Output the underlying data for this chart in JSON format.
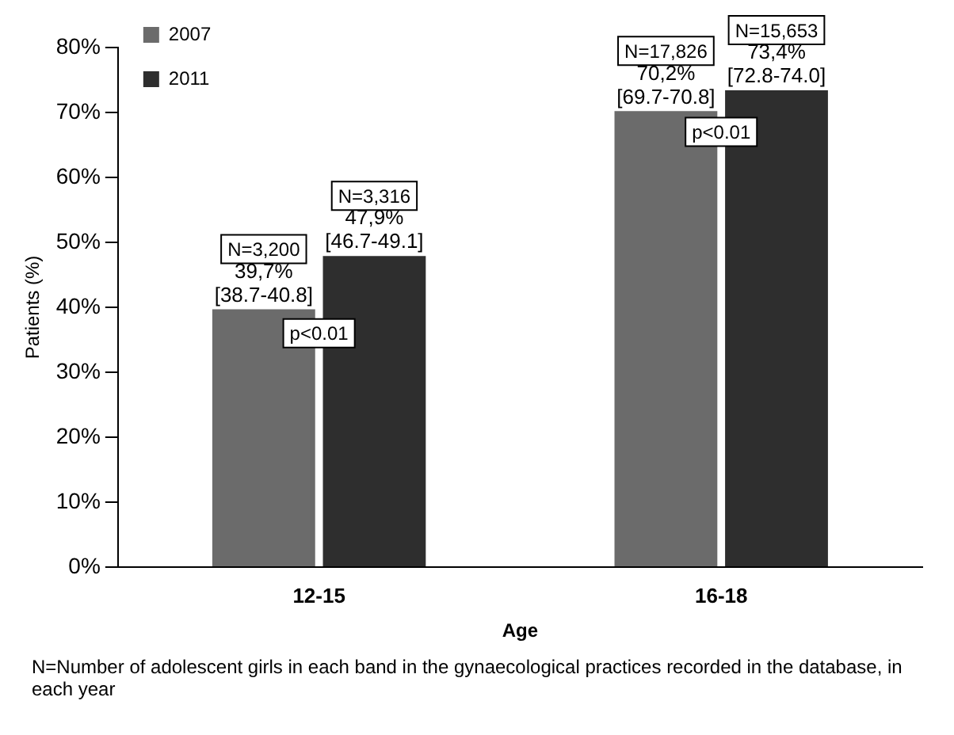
{
  "chart_data": {
    "type": "bar",
    "xlabel": "Age",
    "ylabel": "Patients (%)",
    "categories": [
      "12-15",
      "16-18"
    ],
    "series": [
      {
        "name": "2007",
        "color": "#6b6b6b",
        "values": [
          39.7,
          70.2
        ],
        "value_labels": [
          "39,7%\n[38.7-40.8]",
          "70,2%\n[69.7-70.8]"
        ]
      },
      {
        "name": "2011",
        "color": "#2e2e2e",
        "values": [
          47.9,
          73.4
        ],
        "value_labels": [
          "47,9%\n[46.7-49.1]",
          "73,4%\n[72.8-74.0]"
        ]
      }
    ],
    "ylim": [
      0,
      80
    ],
    "yticks": [
      {
        "value": 0,
        "label": "0%"
      },
      {
        "value": 10,
        "label": "10%"
      },
      {
        "value": 20,
        "label": "20%"
      },
      {
        "value": 30,
        "label": "30%"
      },
      {
        "value": 40,
        "label": "40%"
      },
      {
        "value": 50,
        "label": "50%"
      },
      {
        "value": 60,
        "label": "60%"
      },
      {
        "value": 70,
        "label": "70%"
      },
      {
        "value": 80,
        "label": "80%"
      }
    ],
    "grid": false,
    "legend": "top left",
    "annotations": [
      "N=3,200",
      "N=3,316",
      "N=17,826",
      "N=15,653",
      {
        "text": "p<0.01",
        "x": "12-15",
        "y": 36
      },
      {
        "text": "p<0.01",
        "x": "16-18",
        "y": 67
      },
      "N=Number of adolescent girls in each band in the gynaecological practices recorded in the database, in each year"
    ]
  }
}
